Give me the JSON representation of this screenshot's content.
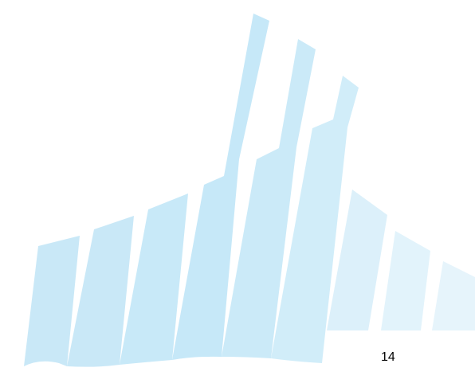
{
  "page": {
    "page_number": "14"
  },
  "decoration": {
    "name": "decorative-bars-watermark",
    "colors": {
      "stripe_dark": "#c9e9f7",
      "stripe_mid": "#d4eef9",
      "stripe_light": "#e4f3fb",
      "background": "#ffffff",
      "text": "#000000"
    }
  }
}
